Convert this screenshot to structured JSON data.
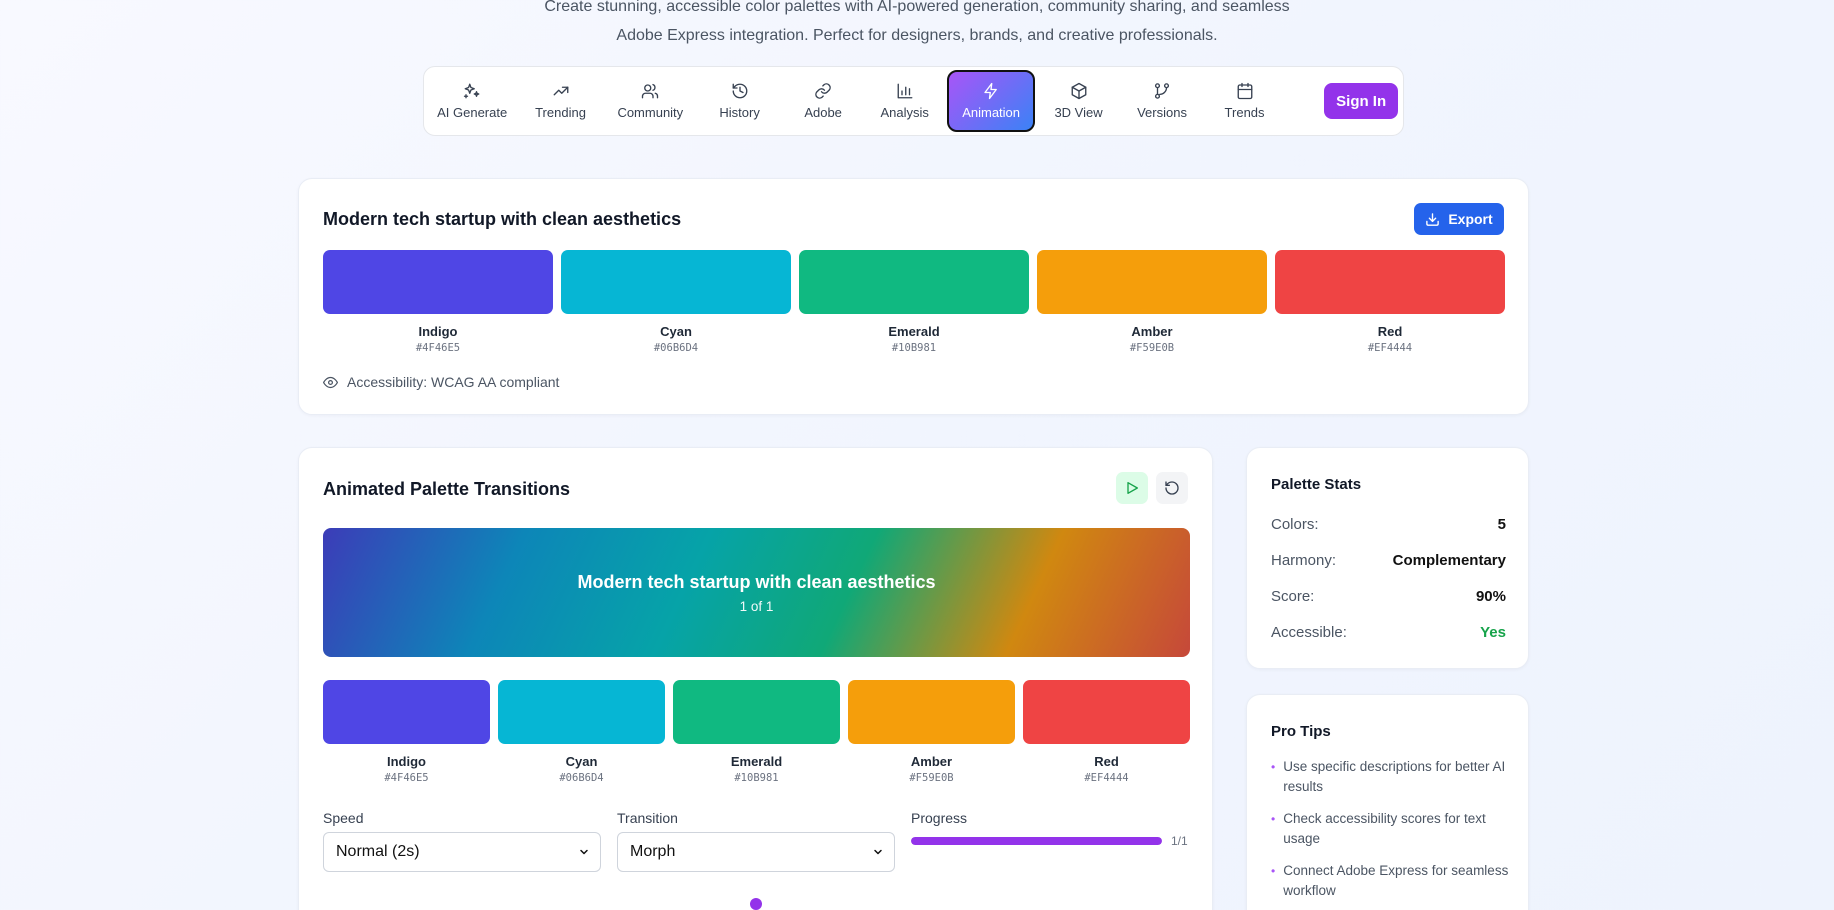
{
  "intro": {
    "line1": "Create stunning, accessible color palettes with AI-powered generation, community sharing, and seamless",
    "line2": "Adobe Express integration. Perfect for designers, brands, and creative professionals."
  },
  "nav": {
    "items": [
      {
        "label": "AI Generate",
        "icon": "sparkles-icon"
      },
      {
        "label": "Trending",
        "icon": "trending-up-icon"
      },
      {
        "label": "Community",
        "icon": "users-icon"
      },
      {
        "label": "History",
        "icon": "history-icon"
      },
      {
        "label": "Adobe",
        "icon": "link-icon"
      },
      {
        "label": "Analysis",
        "icon": "bar-chart-icon"
      },
      {
        "label": "Animation",
        "icon": "zap-icon"
      },
      {
        "label": "3D View",
        "icon": "cube-icon"
      },
      {
        "label": "Versions",
        "icon": "git-branch-icon"
      },
      {
        "label": "Trends",
        "icon": "calendar-icon"
      }
    ],
    "active": "Animation",
    "sign_in": "Sign In"
  },
  "palette": {
    "title": "Modern tech startup with clean aesthetics",
    "export_label": "Export",
    "colors": [
      {
        "name": "Indigo",
        "hex": "#4F46E5"
      },
      {
        "name": "Cyan",
        "hex": "#06B6D4"
      },
      {
        "name": "Emerald",
        "hex": "#10B981"
      },
      {
        "name": "Amber",
        "hex": "#F59E0B"
      },
      {
        "name": "Red",
        "hex": "#EF4444"
      }
    ],
    "accessibility": "Accessibility: WCAG AA compliant"
  },
  "animation": {
    "title": "Animated Palette Transitions",
    "banner_title": "Modern tech startup with clean aesthetics",
    "banner_sub": "1 of 1",
    "speed_label": "Speed",
    "speed_value": "Normal (2s)",
    "transition_label": "Transition",
    "transition_value": "Morph",
    "progress_label": "Progress",
    "progress_count": "1/1",
    "progress_fraction": 1.0
  },
  "stats": {
    "title": "Palette Stats",
    "rows": [
      {
        "key": "Colors:",
        "value": "5"
      },
      {
        "key": "Harmony:",
        "value": "Complementary"
      },
      {
        "key": "Score:",
        "value": "90%"
      },
      {
        "key": "Accessible:",
        "value": "Yes"
      }
    ],
    "accessible_color": "#16a34a"
  },
  "tips": {
    "title": "Pro Tips",
    "items": [
      "Use specific descriptions for better AI results",
      "Check accessibility scores for text usage",
      "Connect Adobe Express for seamless workflow"
    ]
  }
}
